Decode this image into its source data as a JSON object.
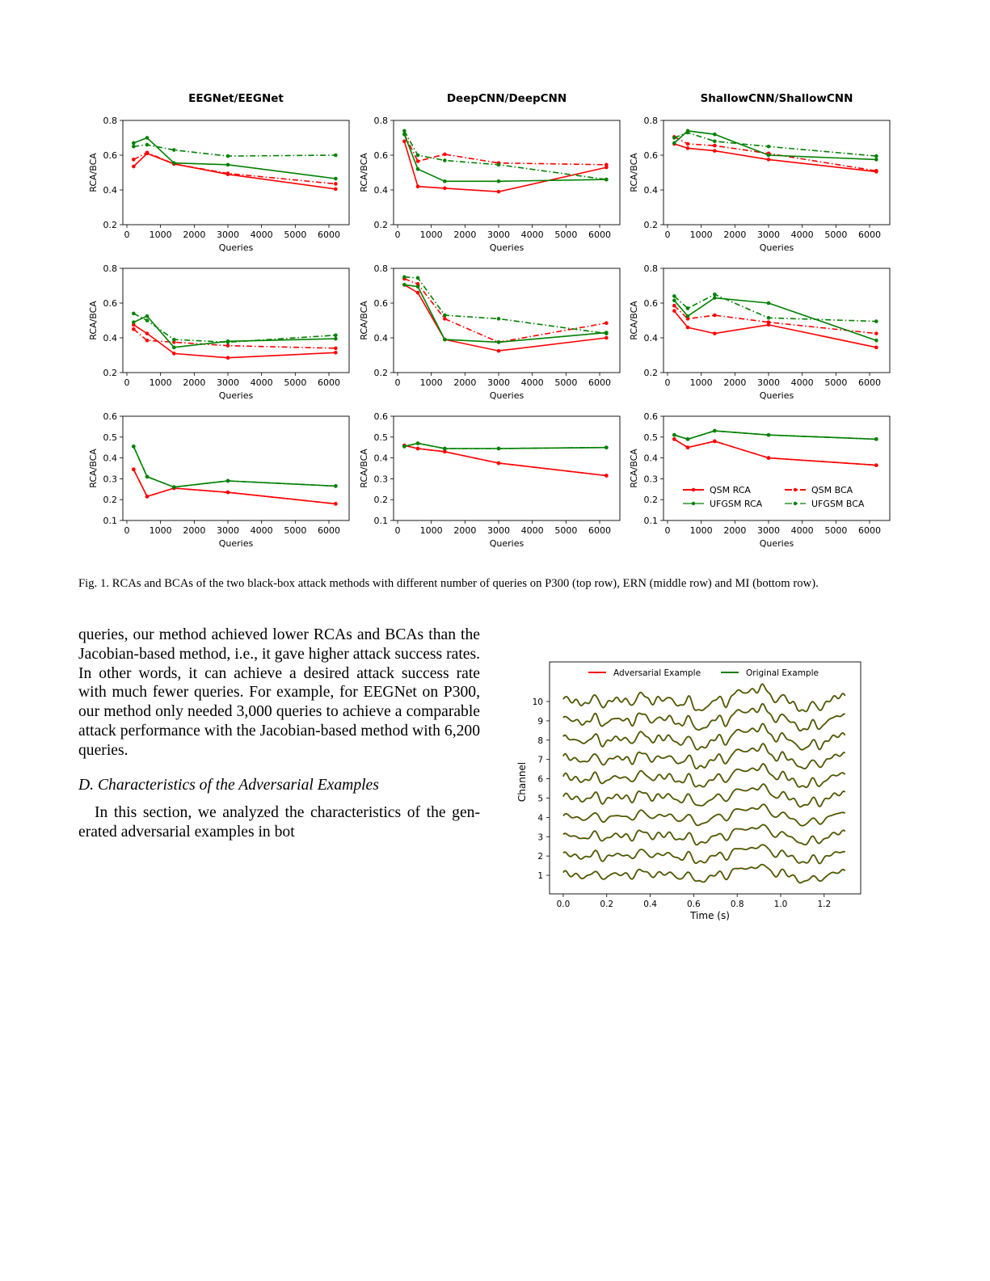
{
  "figure": {
    "column_titles": [
      "EEGNet/EEGNet",
      "DeepCNN/DeepCNN",
      "ShallowCNN/ShallowCNN"
    ],
    "caption": "Fig. 1.  RCAs and BCAs of the two black-box attack methods with different number of queries on P300 (top row), ERN (middle row) and MI (bottom row).",
    "colors": {
      "qsm": "#ff0000",
      "ufgsm": "#008000"
    }
  },
  "body": {
    "paragraph1_lines": [
      "queries, our method achieved lower RCAs and BCAs than the",
      "Jacobian-based method, i.e., it gave higher attack success rates.",
      "In other words, it can achieve a desired attack success rate",
      "with much fewer queries. For example, for EEGNet on P300,",
      "our method only needed 3,000 queries to achieve a comparable",
      "attack performance with the Jacobian-based method with 6,200",
      "queries."
    ],
    "section_heading": "D.  Characteristics of the Adversarial Examples",
    "paragraph2_lines": [
      "In this section, we analyzed the characteristics of the gen-",
      "erated adversarial examples in bot"
    ]
  },
  "chart_data": [
    {
      "type": "line",
      "title": "EEGNet/EEGNet",
      "xlabel": "Queries",
      "ylabel": "RCA/BCA",
      "xlim": [
        -120,
        6600
      ],
      "ylim": [
        0.2,
        0.8
      ],
      "xticks": [
        0,
        1000,
        2000,
        3000,
        4000,
        5000,
        6000
      ],
      "yticks": [
        0.2,
        0.4,
        0.6,
        0.8
      ],
      "grid": false,
      "x": [
        200,
        600,
        1400,
        3000,
        6200
      ],
      "series": [
        {
          "name": "QSM RCA",
          "style": "solid",
          "color": "#ff0000",
          "values": [
            0.535,
            0.61,
            0.55,
            0.49,
            0.405
          ]
        },
        {
          "name": "QSM BCA",
          "style": "dashdot",
          "color": "#ff0000",
          "values": [
            0.575,
            0.615,
            0.55,
            0.495,
            0.435
          ]
        },
        {
          "name": "UFGSM RCA",
          "style": "solid",
          "color": "#008000",
          "values": [
            0.67,
            0.7,
            0.555,
            0.545,
            0.465
          ]
        },
        {
          "name": "UFGSM BCA",
          "style": "dashdot",
          "color": "#008000",
          "values": [
            0.65,
            0.66,
            0.63,
            0.595,
            0.6
          ]
        }
      ]
    },
    {
      "type": "line",
      "title": "DeepCNN/DeepCNN",
      "xlabel": "Queries",
      "ylabel": "RCA/BCA",
      "xlim": [
        -120,
        6600
      ],
      "ylim": [
        0.2,
        0.8
      ],
      "xticks": [
        0,
        1000,
        2000,
        3000,
        4000,
        5000,
        6000
      ],
      "yticks": [
        0.2,
        0.4,
        0.6,
        0.8
      ],
      "grid": false,
      "x": [
        200,
        600,
        1400,
        3000,
        6200
      ],
      "series": [
        {
          "name": "QSM RCA",
          "style": "solid",
          "color": "#ff0000",
          "values": [
            0.68,
            0.42,
            0.41,
            0.39,
            0.53
          ]
        },
        {
          "name": "QSM BCA",
          "style": "dashdot",
          "color": "#ff0000",
          "values": [
            0.72,
            0.565,
            0.605,
            0.555,
            0.545
          ]
        },
        {
          "name": "UFGSM RCA",
          "style": "solid",
          "color": "#008000",
          "values": [
            0.72,
            0.52,
            0.45,
            0.45,
            0.46
          ]
        },
        {
          "name": "UFGSM BCA",
          "style": "dashdot",
          "color": "#008000",
          "values": [
            0.74,
            0.6,
            0.57,
            0.545,
            0.46
          ]
        }
      ]
    },
    {
      "type": "line",
      "title": "ShallowCNN/ShallowCNN",
      "xlabel": "Queries",
      "ylabel": "RCA/BCA",
      "xlim": [
        -120,
        6600
      ],
      "ylim": [
        0.2,
        0.8
      ],
      "xticks": [
        0,
        1000,
        2000,
        3000,
        4000,
        5000,
        6000
      ],
      "yticks": [
        0.2,
        0.4,
        0.6,
        0.8
      ],
      "grid": false,
      "x": [
        200,
        600,
        1400,
        3000,
        6200
      ],
      "series": [
        {
          "name": "QSM RCA",
          "style": "solid",
          "color": "#ff0000",
          "values": [
            0.665,
            0.64,
            0.625,
            0.575,
            0.505
          ]
        },
        {
          "name": "QSM BCA",
          "style": "dashdot",
          "color": "#ff0000",
          "values": [
            0.705,
            0.665,
            0.655,
            0.61,
            0.51
          ]
        },
        {
          "name": "UFGSM RCA",
          "style": "solid",
          "color": "#008000",
          "values": [
            0.67,
            0.74,
            0.72,
            0.6,
            0.575
          ]
        },
        {
          "name": "UFGSM BCA",
          "style": "dashdot",
          "color": "#008000",
          "values": [
            0.7,
            0.73,
            0.68,
            0.65,
            0.595
          ]
        }
      ]
    },
    {
      "type": "line",
      "title": "",
      "xlabel": "Queries",
      "ylabel": "RCA/BCA",
      "xlim": [
        -120,
        6600
      ],
      "ylim": [
        0.2,
        0.8
      ],
      "xticks": [
        0,
        1000,
        2000,
        3000,
        4000,
        5000,
        6000
      ],
      "yticks": [
        0.2,
        0.4,
        0.6,
        0.8
      ],
      "grid": false,
      "x": [
        200,
        600,
        1400,
        3000,
        6200
      ],
      "series": [
        {
          "name": "QSM RCA",
          "style": "solid",
          "color": "#ff0000",
          "values": [
            0.475,
            0.425,
            0.31,
            0.285,
            0.315
          ]
        },
        {
          "name": "QSM BCA",
          "style": "dashdot",
          "color": "#ff0000",
          "values": [
            0.45,
            0.385,
            0.375,
            0.355,
            0.34
          ]
        },
        {
          "name": "UFGSM RCA",
          "style": "solid",
          "color": "#008000",
          "values": [
            0.49,
            0.525,
            0.345,
            0.38,
            0.395
          ]
        },
        {
          "name": "UFGSM BCA",
          "style": "dashdot",
          "color": "#008000",
          "values": [
            0.54,
            0.5,
            0.39,
            0.375,
            0.415
          ]
        }
      ]
    },
    {
      "type": "line",
      "title": "",
      "xlabel": "Queries",
      "ylabel": "RCA/BCA",
      "xlim": [
        -120,
        6600
      ],
      "ylim": [
        0.2,
        0.8
      ],
      "xticks": [
        0,
        1000,
        2000,
        3000,
        4000,
        5000,
        6000
      ],
      "yticks": [
        0.2,
        0.4,
        0.6,
        0.8
      ],
      "grid": false,
      "x": [
        200,
        600,
        1400,
        3000,
        6200
      ],
      "series": [
        {
          "name": "QSM RCA",
          "style": "solid",
          "color": "#ff0000",
          "values": [
            0.705,
            0.66,
            0.39,
            0.325,
            0.4
          ]
        },
        {
          "name": "QSM BCA",
          "style": "dashdot",
          "color": "#ff0000",
          "values": [
            0.74,
            0.71,
            0.51,
            0.375,
            0.485
          ]
        },
        {
          "name": "UFGSM RCA",
          "style": "solid",
          "color": "#008000",
          "values": [
            0.705,
            0.695,
            0.39,
            0.375,
            0.43
          ]
        },
        {
          "name": "UFGSM BCA",
          "style": "dashdot",
          "color": "#008000",
          "values": [
            0.75,
            0.745,
            0.53,
            0.51,
            0.425
          ]
        }
      ]
    },
    {
      "type": "line",
      "title": "",
      "xlabel": "Queries",
      "ylabel": "RCA/BCA",
      "xlim": [
        -120,
        6600
      ],
      "ylim": [
        0.2,
        0.8
      ],
      "xticks": [
        0,
        1000,
        2000,
        3000,
        4000,
        5000,
        6000
      ],
      "yticks": [
        0.2,
        0.4,
        0.6,
        0.8
      ],
      "grid": false,
      "x": [
        200,
        600,
        1400,
        3000,
        6200
      ],
      "series": [
        {
          "name": "QSM RCA",
          "style": "solid",
          "color": "#ff0000",
          "values": [
            0.555,
            0.46,
            0.425,
            0.475,
            0.345
          ]
        },
        {
          "name": "QSM BCA",
          "style": "dashdot",
          "color": "#ff0000",
          "values": [
            0.585,
            0.51,
            0.53,
            0.49,
            0.425
          ]
        },
        {
          "name": "UFGSM RCA",
          "style": "solid",
          "color": "#008000",
          "values": [
            0.615,
            0.525,
            0.63,
            0.6,
            0.385
          ]
        },
        {
          "name": "UFGSM BCA",
          "style": "dashdot",
          "color": "#008000",
          "values": [
            0.64,
            0.57,
            0.65,
            0.515,
            0.495
          ]
        }
      ]
    },
    {
      "type": "line",
      "title": "",
      "xlabel": "Queries",
      "ylabel": "RCA/BCA",
      "xlim": [
        -120,
        6600
      ],
      "ylim": [
        0.1,
        0.6
      ],
      "xticks": [
        0,
        1000,
        2000,
        3000,
        4000,
        5000,
        6000
      ],
      "yticks": [
        0.1,
        0.2,
        0.3,
        0.4,
        0.5,
        0.6
      ],
      "grid": false,
      "x": [
        200,
        600,
        1400,
        3000,
        6200
      ],
      "series": [
        {
          "name": "QSM RCA",
          "style": "solid",
          "color": "#ff0000",
          "values": [
            0.345,
            0.215,
            0.255,
            0.235,
            0.18
          ]
        },
        {
          "name": "QSM BCA",
          "style": "dashdot",
          "color": "#ff0000",
          "values": [
            0.345,
            0.215,
            0.255,
            0.235,
            0.18
          ]
        },
        {
          "name": "UFGSM RCA",
          "style": "solid",
          "color": "#008000",
          "values": [
            0.455,
            0.31,
            0.26,
            0.29,
            0.265
          ]
        },
        {
          "name": "UFGSM BCA",
          "style": "dashdot",
          "color": "#008000",
          "values": [
            0.455,
            0.31,
            0.26,
            0.29,
            0.265
          ]
        }
      ]
    },
    {
      "type": "line",
      "title": "",
      "xlabel": "Queries",
      "ylabel": "RCA/BCA",
      "xlim": [
        -120,
        6600
      ],
      "ylim": [
        0.1,
        0.6
      ],
      "xticks": [
        0,
        1000,
        2000,
        3000,
        4000,
        5000,
        6000
      ],
      "yticks": [
        0.1,
        0.2,
        0.3,
        0.4,
        0.5,
        0.6
      ],
      "grid": false,
      "x": [
        200,
        600,
        1400,
        3000,
        6200
      ],
      "series": [
        {
          "name": "QSM RCA",
          "style": "solid",
          "color": "#ff0000",
          "values": [
            0.46,
            0.445,
            0.43,
            0.375,
            0.315
          ]
        },
        {
          "name": "QSM BCA",
          "style": "dashdot",
          "color": "#ff0000",
          "values": [
            0.46,
            0.445,
            0.43,
            0.375,
            0.315
          ]
        },
        {
          "name": "UFGSM RCA",
          "style": "solid",
          "color": "#008000",
          "values": [
            0.455,
            0.47,
            0.445,
            0.445,
            0.45
          ]
        },
        {
          "name": "UFGSM BCA",
          "style": "dashdot",
          "color": "#008000",
          "values": [
            0.455,
            0.47,
            0.445,
            0.445,
            0.45
          ]
        }
      ]
    },
    {
      "type": "line",
      "title": "",
      "xlabel": "Queries",
      "ylabel": "RCA/BCA",
      "xlim": [
        -120,
        6600
      ],
      "ylim": [
        0.1,
        0.6
      ],
      "xticks": [
        0,
        1000,
        2000,
        3000,
        4000,
        5000,
        6000
      ],
      "yticks": [
        0.1,
        0.2,
        0.3,
        0.4,
        0.5,
        0.6
      ],
      "grid": false,
      "legend": "lower-center",
      "x": [
        200,
        600,
        1400,
        3000,
        6200
      ],
      "series": [
        {
          "name": "QSM RCA",
          "style": "solid",
          "color": "#ff0000",
          "values": [
            0.49,
            0.45,
            0.48,
            0.4,
            0.365
          ]
        },
        {
          "name": "QSM BCA",
          "style": "dashdot",
          "color": "#ff0000",
          "values": [
            0.49,
            0.45,
            0.48,
            0.4,
            0.365
          ]
        },
        {
          "name": "UFGSM RCA",
          "style": "solid",
          "color": "#008000",
          "values": [
            0.51,
            0.49,
            0.53,
            0.51,
            0.49
          ]
        },
        {
          "name": "UFGSM BCA",
          "style": "dashdot",
          "color": "#008000",
          "values": [
            0.51,
            0.49,
            0.53,
            0.51,
            0.49
          ]
        }
      ]
    },
    {
      "type": "line",
      "title": "",
      "xlabel": "Time (s)",
      "ylabel": "Channel",
      "xlim": [
        -0.063,
        1.368
      ],
      "ylim": [
        0.04,
        12.05
      ],
      "xticks": [
        "0.0",
        "0.2",
        "0.4",
        "0.6",
        "0.8",
        "1.0",
        "1.2"
      ],
      "yticks": [
        1,
        2,
        3,
        4,
        5,
        6,
        7,
        8,
        9,
        10
      ],
      "grid": false,
      "legend": "top",
      "series": [
        {
          "name": "Adversarial Example",
          "color": "#ff0000"
        },
        {
          "name": "Original Example",
          "color": "#008000"
        }
      ]
    }
  ]
}
